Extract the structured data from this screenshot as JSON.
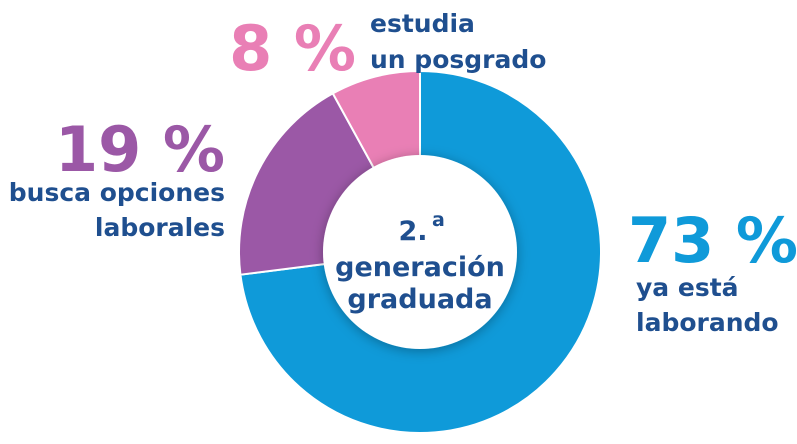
{
  "chart_data": {
    "type": "donut",
    "categories": [
      [
        "ya está",
        "laborando"
      ],
      [
        "busca opciones",
        "laborales"
      ],
      [
        "estudia",
        "un posgrado"
      ]
    ],
    "values": [
      73,
      19,
      8
    ],
    "value_labels": [
      "73 %",
      "19 %",
      "8 %"
    ],
    "colors": [
      "#0f9ad9",
      "#9b58a6",
      "#e97fb5"
    ],
    "center_text": {
      "number": "2.",
      "superscript": "a",
      "lines": [
        "generación",
        "graduada"
      ]
    }
  }
}
